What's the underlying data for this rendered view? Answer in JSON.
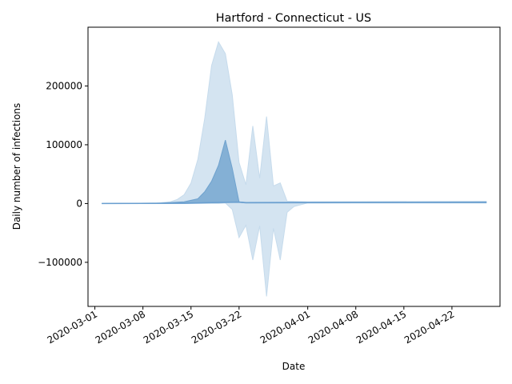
{
  "chart_data": {
    "type": "area",
    "title": "Hartford - Connecticut - US",
    "xlabel": "Date",
    "ylabel": "Daily number of infections",
    "x_ticks": [
      "2020-03-01",
      "2020-03-08",
      "2020-03-15",
      "2020-03-22",
      "2020-04-01",
      "2020-04-08",
      "2020-04-15",
      "2020-04-22"
    ],
    "y_ticks": [
      -100000,
      0,
      100000,
      200000
    ],
    "y_tick_labels": [
      "−100000",
      "0",
      "100000",
      "200000"
    ],
    "xlim": [
      "2020-02-29",
      "2020-04-29"
    ],
    "ylim": [
      -175000,
      300000
    ],
    "colors": {
      "band_outer": "#c6dbec",
      "band_inner": "#6fa2ce",
      "line": "#6a9fd0"
    },
    "series": [
      {
        "role": "median",
        "points": [
          {
            "x": "2020-03-02",
            "y": 0
          },
          {
            "x": "2020-03-14",
            "y": 500
          },
          {
            "x": "2020-03-18",
            "y": 1500
          },
          {
            "x": "2020-03-22",
            "y": 2500
          },
          {
            "x": "2020-03-23",
            "y": 1500
          },
          {
            "x": "2020-04-01",
            "y": 2000
          },
          {
            "x": "2020-04-27",
            "y": 2000
          }
        ]
      },
      {
        "role": "inner_band",
        "upper": [
          {
            "x": "2020-03-02",
            "y": 0
          },
          {
            "x": "2020-03-10",
            "y": 500
          },
          {
            "x": "2020-03-14",
            "y": 3000
          },
          {
            "x": "2020-03-16",
            "y": 8000
          },
          {
            "x": "2020-03-17",
            "y": 20000
          },
          {
            "x": "2020-03-18",
            "y": 38000
          },
          {
            "x": "2020-03-19",
            "y": 65000
          },
          {
            "x": "2020-03-20",
            "y": 108000
          },
          {
            "x": "2020-03-21",
            "y": 60000
          },
          {
            "x": "2020-03-22",
            "y": 3000
          },
          {
            "x": "2020-03-23",
            "y": 1500
          },
          {
            "x": "2020-04-27",
            "y": 2500
          }
        ],
        "lower": [
          {
            "x": "2020-03-02",
            "y": 0
          },
          {
            "x": "2020-03-22",
            "y": 2000
          },
          {
            "x": "2020-03-23",
            "y": 1000
          },
          {
            "x": "2020-04-27",
            "y": 1500
          }
        ]
      },
      {
        "role": "outer_band",
        "upper": [
          {
            "x": "2020-03-02",
            "y": 0
          },
          {
            "x": "2020-03-10",
            "y": 1000
          },
          {
            "x": "2020-03-12",
            "y": 3000
          },
          {
            "x": "2020-03-13",
            "y": 7000
          },
          {
            "x": "2020-03-14",
            "y": 15000
          },
          {
            "x": "2020-03-15",
            "y": 35000
          },
          {
            "x": "2020-03-16",
            "y": 75000
          },
          {
            "x": "2020-03-17",
            "y": 145000
          },
          {
            "x": "2020-03-18",
            "y": 235000
          },
          {
            "x": "2020-03-19",
            "y": 275000
          },
          {
            "x": "2020-03-20",
            "y": 255000
          },
          {
            "x": "2020-03-21",
            "y": 185000
          },
          {
            "x": "2020-03-22",
            "y": 70000
          },
          {
            "x": "2020-03-23",
            "y": 32000
          },
          {
            "x": "2020-03-24",
            "y": 132000
          },
          {
            "x": "2020-03-25",
            "y": 43000
          },
          {
            "x": "2020-03-26",
            "y": 148000
          },
          {
            "x": "2020-03-27",
            "y": 30000
          },
          {
            "x": "2020-03-28",
            "y": 35000
          },
          {
            "x": "2020-03-29",
            "y": 4000
          },
          {
            "x": "2020-04-01",
            "y": 3000
          },
          {
            "x": "2020-04-27",
            "y": 4000
          }
        ],
        "lower": [
          {
            "x": "2020-03-02",
            "y": 0
          },
          {
            "x": "2020-03-19",
            "y": 0
          },
          {
            "x": "2020-03-20",
            "y": 1000
          },
          {
            "x": "2020-03-21",
            "y": -10000
          },
          {
            "x": "2020-03-22",
            "y": -58000
          },
          {
            "x": "2020-03-23",
            "y": -37000
          },
          {
            "x": "2020-03-24",
            "y": -96000
          },
          {
            "x": "2020-03-25",
            "y": -38000
          },
          {
            "x": "2020-03-26",
            "y": -158000
          },
          {
            "x": "2020-03-27",
            "y": -42000
          },
          {
            "x": "2020-03-28",
            "y": -96000
          },
          {
            "x": "2020-03-29",
            "y": -15000
          },
          {
            "x": "2020-03-30",
            "y": -5000
          },
          {
            "x": "2020-04-01",
            "y": 1000
          },
          {
            "x": "2020-04-27",
            "y": 1000
          }
        ]
      }
    ]
  }
}
